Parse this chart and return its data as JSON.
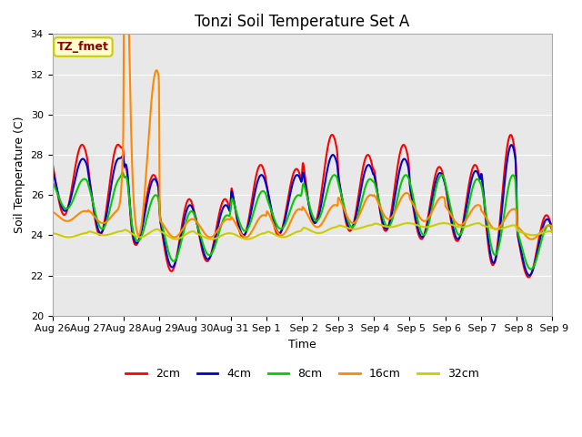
{
  "title": "Tonzi Soil Temperature Set A",
  "xlabel": "Time",
  "ylabel": "Soil Temperature (C)",
  "ylim": [
    20,
    34
  ],
  "xlim": [
    0,
    336
  ],
  "label_box_text": "TZ_fmet",
  "label_box_facecolor": "#ffffcc",
  "label_box_edgecolor": "#cccc00",
  "label_box_textcolor": "#8b0000",
  "tick_labels": [
    "Aug 26",
    "Aug 27",
    "Aug 28",
    "Aug 29",
    "Aug 30",
    "Aug 31",
    "Sep 1",
    " Sep 2",
    " Sep 3",
    " Sep 4",
    " Sep 5",
    " Sep 6",
    " Sep 7",
    " Sep 8",
    " Sep 9"
  ],
  "tick_positions": [
    0,
    24,
    48,
    72,
    96,
    120,
    144,
    168,
    192,
    216,
    240,
    264,
    288,
    312,
    336
  ],
  "series_colors": [
    "#ff0000",
    "#0000cc",
    "#00cc00",
    "#ff8800",
    "#cccc00"
  ],
  "series_labels": [
    "2cm",
    "4cm",
    "8cm",
    "16cm",
    "32cm"
  ],
  "line_width": 1.5,
  "title_fontsize": 12,
  "axis_label_fontsize": 9,
  "tick_fontsize": 8
}
